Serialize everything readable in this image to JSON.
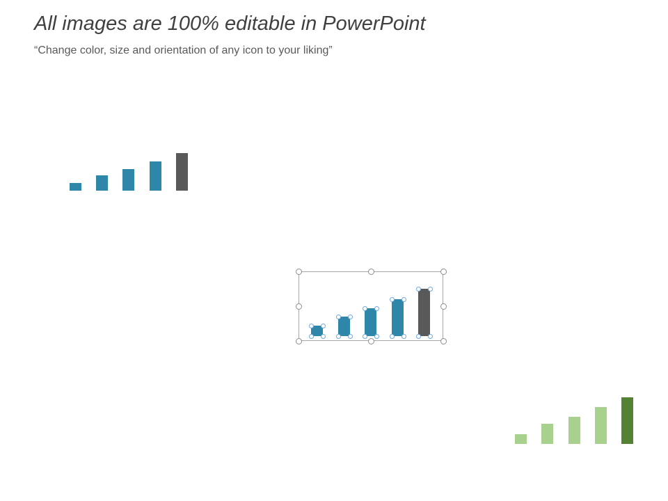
{
  "header": {
    "title": "All images are 100% editable in PowerPoint",
    "subtitle": "“Change color, size and orientation of any icon to your liking”"
  },
  "icons": [
    {
      "name": "bar-chart-icon-blue",
      "colors": [
        "#2e86a8",
        "#2e86a8",
        "#2e86a8",
        "#2e86a8",
        "#595959"
      ],
      "selected": false
    },
    {
      "name": "bar-chart-icon-selected",
      "colors": [
        "#2e86a8",
        "#2e86a8",
        "#2e86a8",
        "#2e86a8",
        "#595959"
      ],
      "selected": true
    },
    {
      "name": "bar-chart-icon-green",
      "colors": [
        "#a9d18e",
        "#a9d18e",
        "#a9d18e",
        "#a9d18e",
        "#548235"
      ],
      "selected": false
    }
  ]
}
